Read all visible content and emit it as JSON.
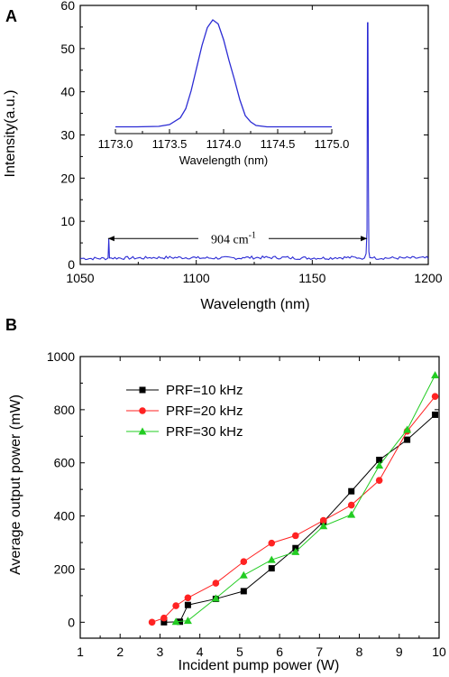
{
  "chart_data": [
    {
      "panel": "A",
      "type": "line",
      "xlabel": "Wavelength (nm)",
      "ylabel": "Intensity(a.u.)",
      "xlim": [
        1050,
        1200
      ],
      "ylim": [
        0,
        60
      ],
      "xticks": [
        1050,
        1100,
        1150,
        1200
      ],
      "yticks": [
        0,
        10,
        20,
        30,
        40,
        50,
        60
      ],
      "color": "#2b2bd4",
      "series": [
        {
          "x": [
            1050,
            1062,
            1062.3,
            1062.6,
            1080,
            1100,
            1120,
            1140,
            1160,
            1170,
            1172.5,
            1173.2,
            1173.6,
            1173.8,
            1174.0,
            1174.2,
            1174.4,
            1174.8,
            1176,
            1190,
            1200
          ],
          "y": [
            1.4,
            1.5,
            6.0,
            1.5,
            1.6,
            1.5,
            1.6,
            1.5,
            1.6,
            1.5,
            1.5,
            2.5,
            8,
            56,
            56,
            20,
            3,
            1.6,
            1.5,
            1.5,
            1.4
          ]
        }
      ],
      "annotation": {
        "text": "904 cm",
        "superscript": "-1",
        "from_x": 1062,
        "to_x": 1174,
        "y": 6
      },
      "inset": {
        "xlabel": "Wavelength (nm)",
        "xlim": [
          1173.0,
          1175.0
        ],
        "ylim": [
          30,
          56
        ],
        "xticks": [
          "1173.0",
          "1173.5",
          "1174.0",
          "1174.5",
          "1175.0"
        ],
        "x": [
          1173.0,
          1173.2,
          1173.4,
          1173.5,
          1173.6,
          1173.65,
          1173.7,
          1173.75,
          1173.8,
          1173.85,
          1173.9,
          1173.95,
          1174.0,
          1174.05,
          1174.1,
          1174.15,
          1174.2,
          1174.25,
          1174.3,
          1174.4,
          1174.5,
          1174.7,
          1175.0
        ],
        "y": [
          31.5,
          31.5,
          31.6,
          32.0,
          33.5,
          35.5,
          39.5,
          44.5,
          49.5,
          53.5,
          55.2,
          54.3,
          50.8,
          46.2,
          42.0,
          37.5,
          34.0,
          32.6,
          31.8,
          31.5,
          31.5,
          31.5,
          31.5
        ]
      }
    },
    {
      "panel": "B",
      "type": "line",
      "xlabel": "Incident pump power (W)",
      "ylabel": "Average output power (mW)",
      "xlim": [
        1,
        10
      ],
      "ylim": [
        -60,
        1000
      ],
      "xticks": [
        1,
        2,
        3,
        4,
        5,
        6,
        7,
        8,
        9,
        10
      ],
      "yticks": [
        0,
        200,
        400,
        600,
        800,
        1000
      ],
      "legend_position": "top-left",
      "series": [
        {
          "name": "PRF=10 kHz",
          "marker": "square",
          "color": "#000000",
          "x": [
            3.1,
            3.5,
            3.7,
            4.4,
            5.1,
            5.8,
            6.4,
            7.1,
            7.8,
            8.5,
            9.2,
            9.9
          ],
          "y": [
            0,
            2,
            65,
            88,
            117,
            203,
            279,
            378,
            493,
            611,
            687,
            781
          ]
        },
        {
          "name": "PRF=20 kHz",
          "marker": "circle",
          "color": "#ff2222",
          "x": [
            2.8,
            3.1,
            3.4,
            3.7,
            4.4,
            5.1,
            5.8,
            6.4,
            7.1,
            7.8,
            8.5,
            9.2,
            9.9
          ],
          "y": [
            0,
            16,
            62,
            92,
            147,
            228,
            298,
            326,
            383,
            441,
            534,
            719,
            850
          ]
        },
        {
          "name": "PRF=30 kHz",
          "marker": "triangle",
          "color": "#22cc22",
          "x": [
            3.4,
            3.7,
            4.4,
            5.1,
            5.8,
            6.4,
            7.1,
            7.8,
            8.5,
            9.2,
            9.9
          ],
          "y": [
            2,
            6,
            90,
            177,
            235,
            265,
            362,
            405,
            590,
            725,
            930
          ]
        }
      ]
    }
  ]
}
